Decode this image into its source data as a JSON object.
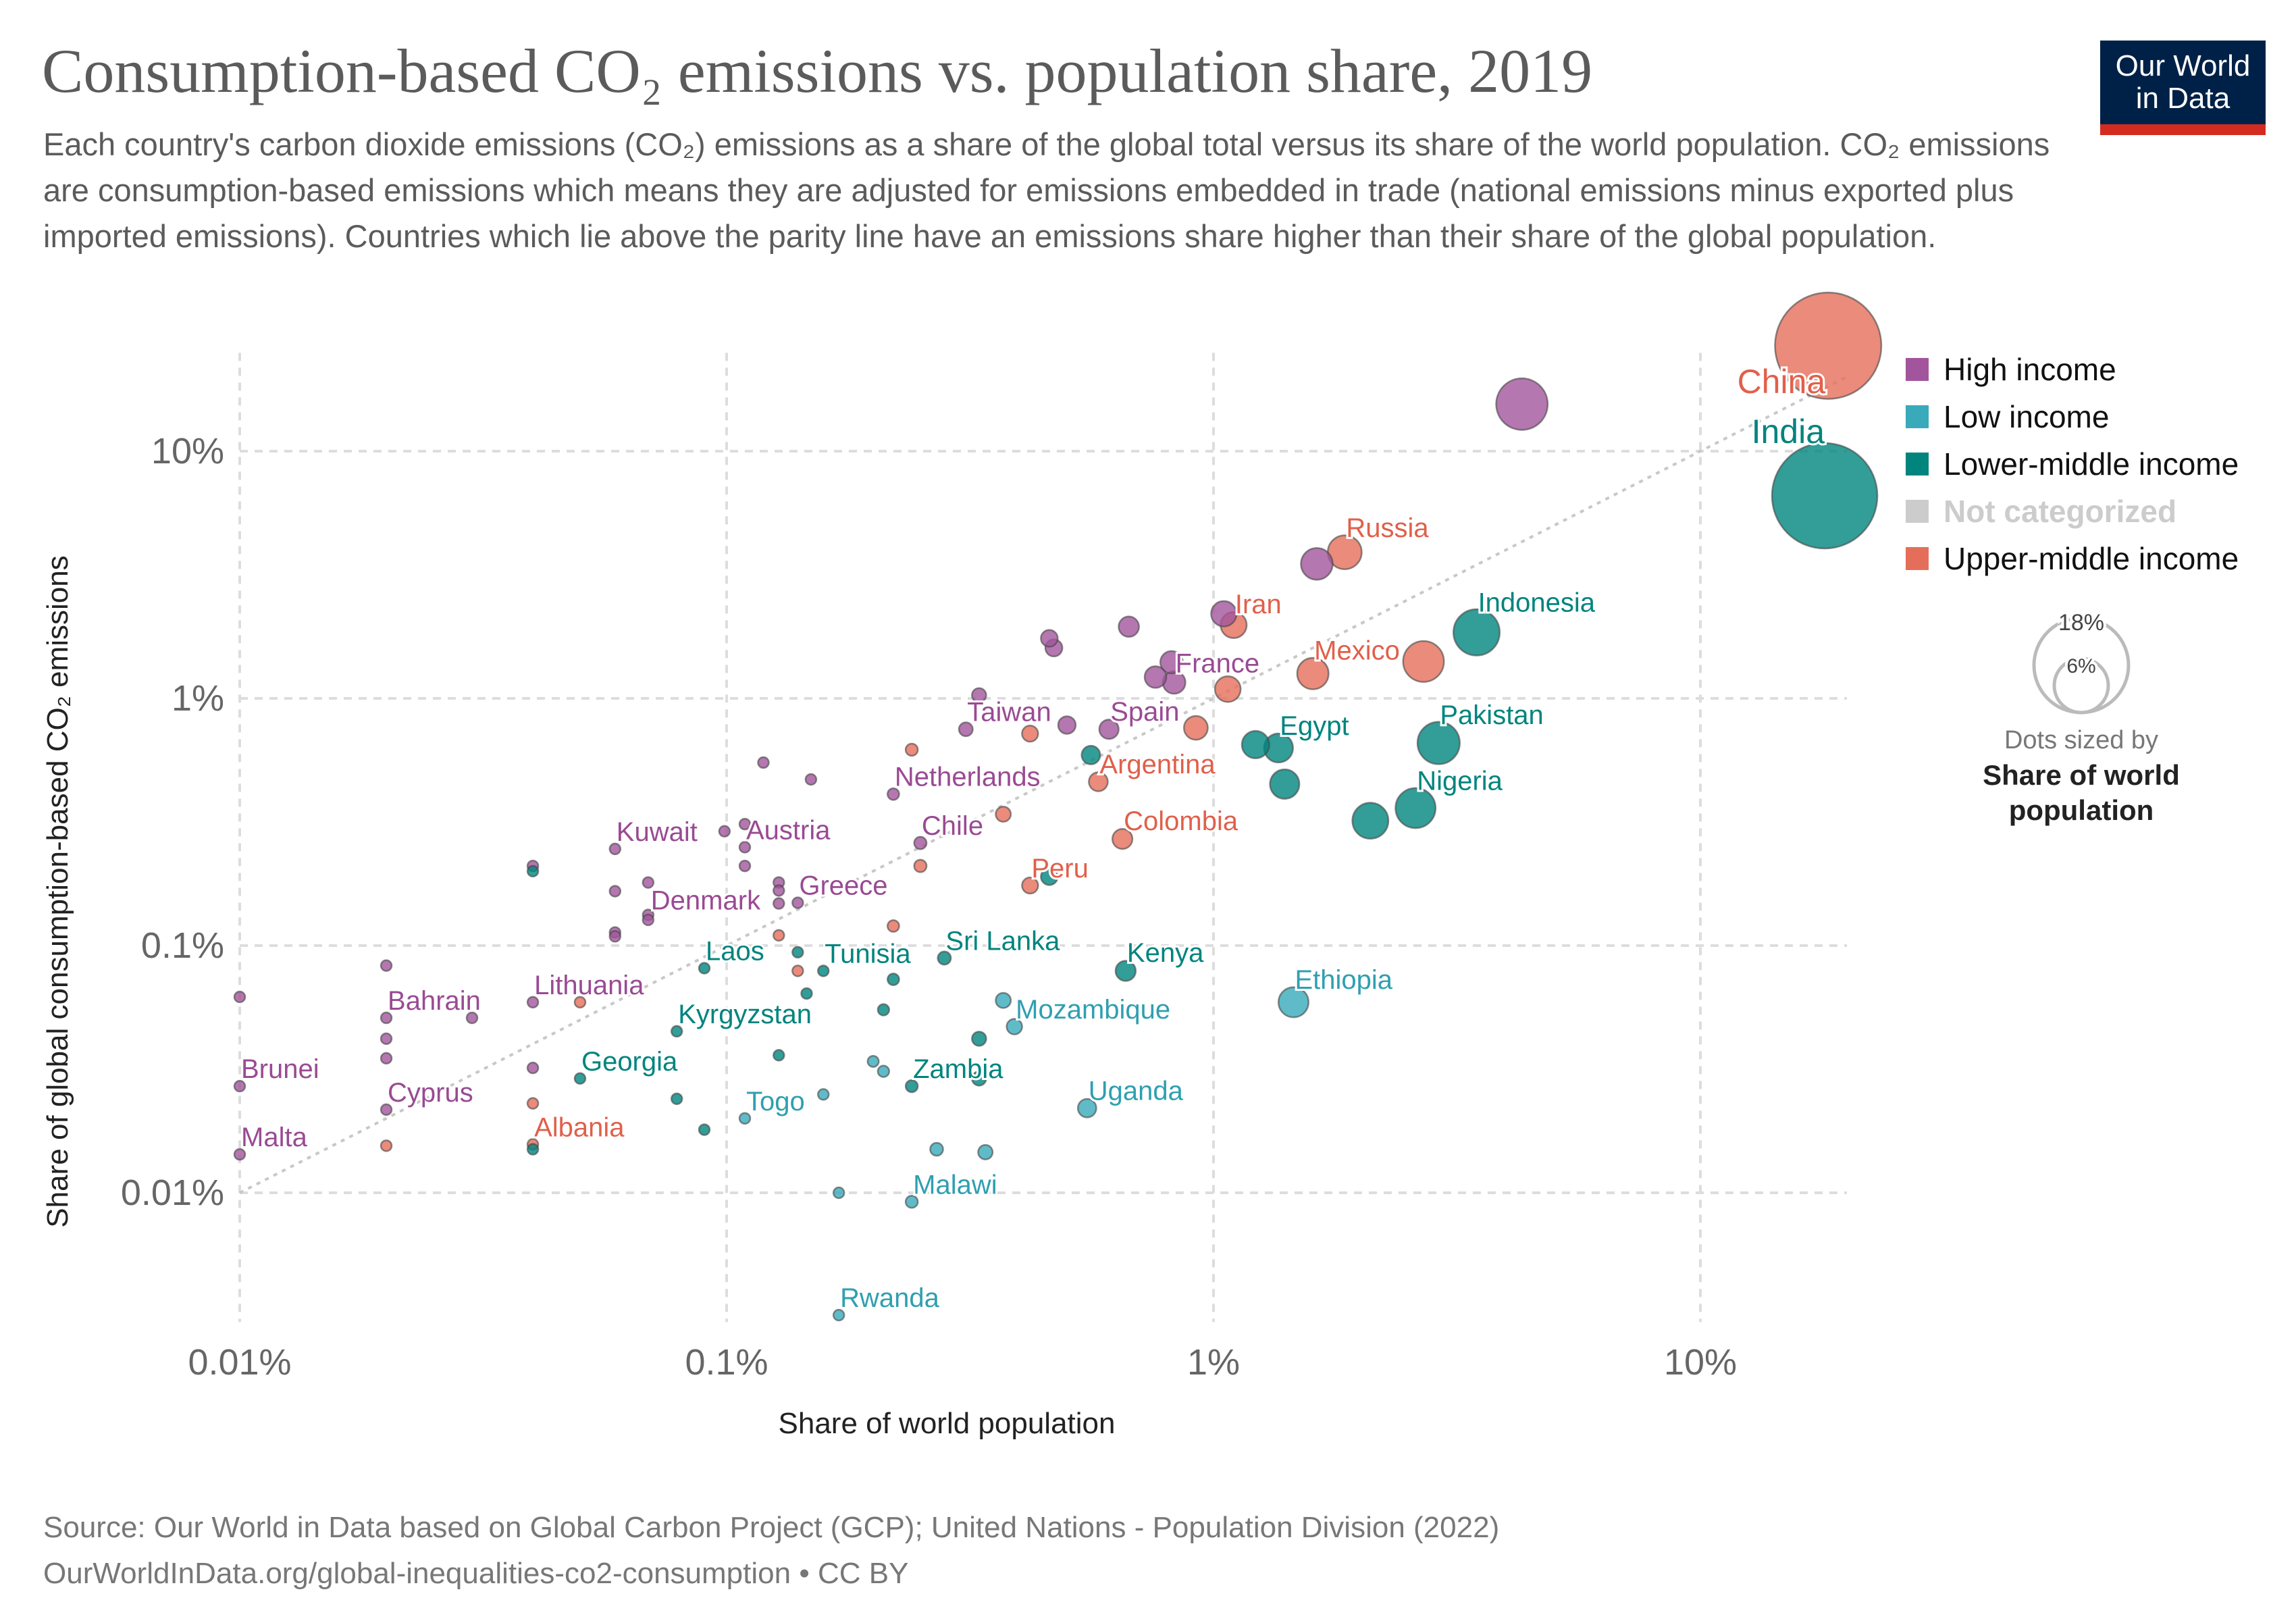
{
  "header": {
    "title": "Consumption-based CO₂ emissions vs. population share, 2019",
    "subtitle": "Each country's carbon dioxide emissions (CO₂) emissions as a share of the global total versus its share of the world population. CO₂ emissions are consumption-based emissions which means they are adjusted for emissions embedded in trade (national emissions minus exported plus imported emissions). Countries which lie above the parity line have an emissions share higher than their share of the global population.",
    "logo_line1": "Our World",
    "logo_line2": "in Data",
    "logo_colors": {
      "background": "#002147",
      "bar": "#d42b21"
    }
  },
  "footer": {
    "source": "Source: Our World in Data based on Global Carbon Project (GCP); United Nations - Population Division (2022)",
    "url": "OurWorldInData.org/global-inequalities-co2-consumption • CC BY"
  },
  "legend": {
    "items": [
      {
        "key": "high",
        "label": "High income",
        "color": "#a2559c"
      },
      {
        "key": "low",
        "label": "Low income",
        "color": "#38aaba"
      },
      {
        "key": "lower-middle",
        "label": "Lower-middle income",
        "color": "#00847e"
      },
      {
        "key": "none",
        "label": "Not categorized",
        "color": "#cccccc"
      },
      {
        "key": "upper-middle",
        "label": "Upper-middle income",
        "color": "#e56e5a"
      }
    ],
    "size_legend": {
      "large": "18%",
      "small": "6%",
      "caption": "Dots sized by",
      "variable": "Share of world population"
    }
  },
  "chart_data": {
    "type": "scatter",
    "xlabel": "Share of world population",
    "ylabel": "Share of global consumption-based CO₂ emissions",
    "x_scale": "log",
    "y_scale": "log",
    "xlim": [
      0.01,
      20
    ],
    "ylim": [
      0.003,
      25
    ],
    "x_ticks": [
      {
        "value": 0.01,
        "label": "0.01%"
      },
      {
        "value": 0.1,
        "label": "0.1%"
      },
      {
        "value": 1,
        "label": "1%"
      },
      {
        "value": 10,
        "label": "10%"
      }
    ],
    "y_ticks": [
      {
        "value": 0.01,
        "label": "0.01%"
      },
      {
        "value": 0.1,
        "label": "0.1%"
      },
      {
        "value": 1,
        "label": "1%"
      },
      {
        "value": 10,
        "label": "10%"
      }
    ],
    "grid": true,
    "parity_line": true,
    "legend_position": "right",
    "size_variable": "Share of world population",
    "points": [
      {
        "label": "China",
        "group": "upper-middle",
        "x": 18.3,
        "y": 26.7
      },
      {
        "label": "India",
        "group": "lower-middle",
        "x": 18.0,
        "y": 6.6
      },
      {
        "group": "high",
        "x": 4.3,
        "y": 15.5
      },
      {
        "label": "Russia",
        "group": "upper-middle",
        "x": 1.86,
        "y": 3.9
      },
      {
        "group": "high",
        "x": 1.63,
        "y": 3.5
      },
      {
        "label": "Iran",
        "group": "upper-middle",
        "x": 1.1,
        "y": 1.98
      },
      {
        "group": "high",
        "x": 1.05,
        "y": 2.2
      },
      {
        "label": "Indonesia",
        "group": "lower-middle",
        "x": 3.47,
        "y": 1.85
      },
      {
        "label": "Mexico",
        "group": "upper-middle",
        "x": 1.6,
        "y": 1.26
      },
      {
        "group": "upper-middle",
        "x": 2.7,
        "y": 1.41
      },
      {
        "label": "France",
        "group": "high",
        "x": 0.83,
        "y": 1.16
      },
      {
        "group": "high",
        "x": 0.76,
        "y": 1.22
      },
      {
        "group": "high",
        "x": 0.82,
        "y": 1.4
      },
      {
        "group": "high",
        "x": 0.67,
        "y": 1.95
      },
      {
        "group": "high",
        "x": 0.46,
        "y": 1.75
      },
      {
        "group": "high",
        "x": 0.47,
        "y": 1.6
      },
      {
        "group": "upper-middle",
        "x": 1.07,
        "y": 1.09
      },
      {
        "label": "Spain",
        "group": "high",
        "x": 0.61,
        "y": 0.75
      },
      {
        "group": "upper-middle",
        "x": 0.92,
        "y": 0.76
      },
      {
        "group": "high",
        "x": 0.5,
        "y": 0.78
      },
      {
        "label": "Taiwan",
        "group": "high",
        "x": 0.31,
        "y": 0.75
      },
      {
        "group": "high",
        "x": 0.33,
        "y": 1.03
      },
      {
        "group": "upper-middle",
        "x": 0.42,
        "y": 0.72
      },
      {
        "label": "Egypt",
        "group": "lower-middle",
        "x": 1.36,
        "y": 0.63
      },
      {
        "group": "lower-middle",
        "x": 1.22,
        "y": 0.65
      },
      {
        "label": "Pakistan",
        "group": "lower-middle",
        "x": 2.9,
        "y": 0.66
      },
      {
        "group": "lower-middle",
        "x": 1.4,
        "y": 0.45
      },
      {
        "label": "Nigeria",
        "group": "lower-middle",
        "x": 2.6,
        "y": 0.36
      },
      {
        "group": "lower-middle",
        "x": 2.1,
        "y": 0.32
      },
      {
        "group": "lower-middle",
        "x": 0.56,
        "y": 0.59
      },
      {
        "label": "Argentina",
        "group": "upper-middle",
        "x": 0.58,
        "y": 0.46
      },
      {
        "label": "Netherlands",
        "group": "high",
        "x": 0.22,
        "y": 0.41
      },
      {
        "group": "upper-middle",
        "x": 0.24,
        "y": 0.62
      },
      {
        "group": "high",
        "x": 0.119,
        "y": 0.55
      },
      {
        "group": "high",
        "x": 0.149,
        "y": 0.47
      },
      {
        "label": "Colombia",
        "group": "upper-middle",
        "x": 0.65,
        "y": 0.27
      },
      {
        "label": "Chile",
        "group": "high",
        "x": 0.25,
        "y": 0.26
      },
      {
        "group": "upper-middle",
        "x": 0.37,
        "y": 0.34
      },
      {
        "label": "Austria",
        "group": "high",
        "x": 0.109,
        "y": 0.25
      },
      {
        "label": "Kuwait",
        "group": "high",
        "x": 0.059,
        "y": 0.246
      },
      {
        "group": "high",
        "x": 0.099,
        "y": 0.29
      },
      {
        "group": "high",
        "x": 0.109,
        "y": 0.31
      },
      {
        "group": "high",
        "x": 0.109,
        "y": 0.21
      },
      {
        "group": "high",
        "x": 0.04,
        "y": 0.21
      },
      {
        "group": "lower-middle",
        "x": 0.04,
        "y": 0.2
      },
      {
        "group": "upper-middle",
        "x": 0.25,
        "y": 0.21
      },
      {
        "label": "Peru",
        "group": "upper-middle",
        "x": 0.42,
        "y": 0.175
      },
      {
        "group": "lower-middle",
        "x": 0.46,
        "y": 0.19
      },
      {
        "label": "Greece",
        "group": "high",
        "x": 0.14,
        "y": 0.149
      },
      {
        "group": "high",
        "x": 0.128,
        "y": 0.18
      },
      {
        "group": "high",
        "x": 0.128,
        "y": 0.167
      },
      {
        "group": "high",
        "x": 0.128,
        "y": 0.148
      },
      {
        "label": "Denmark",
        "group": "high",
        "x": 0.069,
        "y": 0.18
      },
      {
        "group": "high",
        "x": 0.059,
        "y": 0.166
      },
      {
        "group": "high",
        "x": 0.069,
        "y": 0.133
      },
      {
        "group": "high",
        "x": 0.069,
        "y": 0.127
      },
      {
        "group": "high",
        "x": 0.059,
        "y": 0.113
      },
      {
        "group": "high",
        "x": 0.059,
        "y": 0.109
      },
      {
        "group": "upper-middle",
        "x": 0.22,
        "y": 0.12
      },
      {
        "group": "upper-middle",
        "x": 0.128,
        "y": 0.11
      },
      {
        "label": "Laos",
        "group": "lower-middle",
        "x": 0.09,
        "y": 0.081
      },
      {
        "group": "lower-middle",
        "x": 0.14,
        "y": 0.094
      },
      {
        "group": "upper-middle",
        "x": 0.14,
        "y": 0.079
      },
      {
        "label": "Tunisia",
        "group": "lower-middle",
        "x": 0.158,
        "y": 0.079
      },
      {
        "label": "Sri Lanka",
        "group": "lower-middle",
        "x": 0.28,
        "y": 0.089
      },
      {
        "label": "Kenya",
        "group": "lower-middle",
        "x": 0.66,
        "y": 0.079
      },
      {
        "group": "lower-middle",
        "x": 0.22,
        "y": 0.073
      },
      {
        "label": "Ethiopia",
        "group": "low",
        "x": 1.46,
        "y": 0.059
      },
      {
        "label": "Mozambique",
        "group": "low",
        "x": 0.39,
        "y": 0.047
      },
      {
        "group": "low",
        "x": 0.37,
        "y": 0.06
      },
      {
        "group": "lower-middle",
        "x": 0.33,
        "y": 0.042
      },
      {
        "group": "lower-middle",
        "x": 0.146,
        "y": 0.064
      },
      {
        "group": "lower-middle",
        "x": 0.21,
        "y": 0.055
      },
      {
        "label": "Kyrgyzstan",
        "group": "lower-middle",
        "x": 0.079,
        "y": 0.045
      },
      {
        "group": "lower-middle",
        "x": 0.128,
        "y": 0.036
      },
      {
        "label": "Bahrain",
        "group": "high",
        "x": 0.02,
        "y": 0.051
      },
      {
        "group": "high",
        "x": 0.02,
        "y": 0.083
      },
      {
        "group": "high",
        "x": 0.02,
        "y": 0.042
      },
      {
        "group": "high",
        "x": 0.02,
        "y": 0.035
      },
      {
        "group": "high",
        "x": 0.03,
        "y": 0.051
      },
      {
        "label": "Brunei",
        "group": "high",
        "x": 0.01,
        "y": 0.027
      },
      {
        "group": "high",
        "x": 0.01,
        "y": 0.062
      },
      {
        "label": "Malta",
        "group": "high",
        "x": 0.01,
        "y": 0.0143
      },
      {
        "label": "Cyprus",
        "group": "high",
        "x": 0.02,
        "y": 0.0217
      },
      {
        "group": "upper-middle",
        "x": 0.02,
        "y": 0.0155
      },
      {
        "label": "Lithuania",
        "group": "high",
        "x": 0.04,
        "y": 0.059
      },
      {
        "group": "upper-middle",
        "x": 0.05,
        "y": 0.059
      },
      {
        "group": "high",
        "x": 0.04,
        "y": 0.032
      },
      {
        "label": "Georgia",
        "group": "lower-middle",
        "x": 0.05,
        "y": 0.029
      },
      {
        "label": "Albania",
        "group": "upper-middle",
        "x": 0.04,
        "y": 0.0157
      },
      {
        "group": "lower-middle",
        "x": 0.04,
        "y": 0.015
      },
      {
        "group": "upper-middle",
        "x": 0.04,
        "y": 0.023
      },
      {
        "group": "lower-middle",
        "x": 0.079,
        "y": 0.024
      },
      {
        "group": "lower-middle",
        "x": 0.09,
        "y": 0.018
      },
      {
        "label": "Togo",
        "group": "low",
        "x": 0.109,
        "y": 0.02
      },
      {
        "group": "low",
        "x": 0.158,
        "y": 0.025
      },
      {
        "group": "low",
        "x": 0.2,
        "y": 0.034
      },
      {
        "group": "low",
        "x": 0.21,
        "y": 0.031
      },
      {
        "label": "Zambia",
        "group": "lower-middle",
        "x": 0.24,
        "y": 0.027
      },
      {
        "group": "lower-middle",
        "x": 0.33,
        "y": 0.029
      },
      {
        "label": "Uganda",
        "group": "low",
        "x": 0.55,
        "y": 0.022
      },
      {
        "group": "low",
        "x": 0.27,
        "y": 0.015
      },
      {
        "group": "low",
        "x": 0.34,
        "y": 0.0146
      },
      {
        "group": "low",
        "x": 0.17,
        "y": 0.01
      },
      {
        "label": "Malawi",
        "group": "low",
        "x": 0.24,
        "y": 0.0092
      },
      {
        "label": "Rwanda",
        "group": "low",
        "x": 0.17,
        "y": 0.0032
      }
    ]
  }
}
